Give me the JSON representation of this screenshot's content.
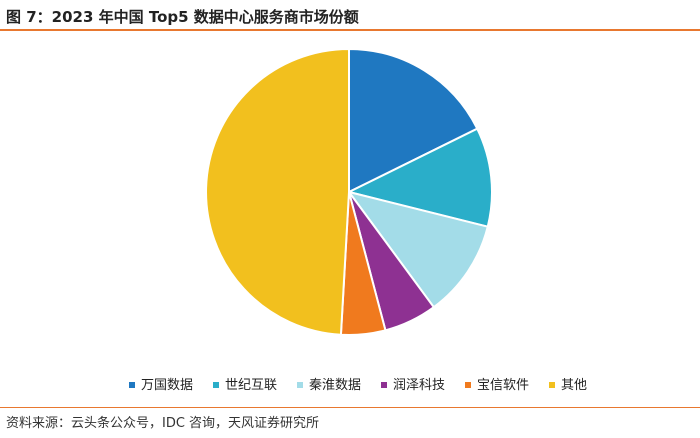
{
  "figure": {
    "title": "图 7：2023 年中国 Top5 数据中心服务商市场份额",
    "source": "资料来源：云头条公众号，IDC 咨询，天风证券研究所"
  },
  "chart_data": {
    "type": "pie",
    "title": "",
    "legend_position": "bottom",
    "start_angle": "12 o'clock",
    "direction": "clockwise",
    "slices": [
      {
        "label": "万国数据",
        "value": 17.7,
        "color": "#1f78c1"
      },
      {
        "label": "世纪互联",
        "value": 11.2,
        "color": "#2aaec9"
      },
      {
        "label": "秦淮数据",
        "value": 11.0,
        "color": "#a3dce8"
      },
      {
        "label": "润泽科技",
        "value": 6.0,
        "color": "#8e3192"
      },
      {
        "label": "宝信软件",
        "value": 5.0,
        "color": "#f07a1e"
      },
      {
        "label": "其他",
        "value": 49.1,
        "color": "#f2c01e"
      }
    ]
  }
}
